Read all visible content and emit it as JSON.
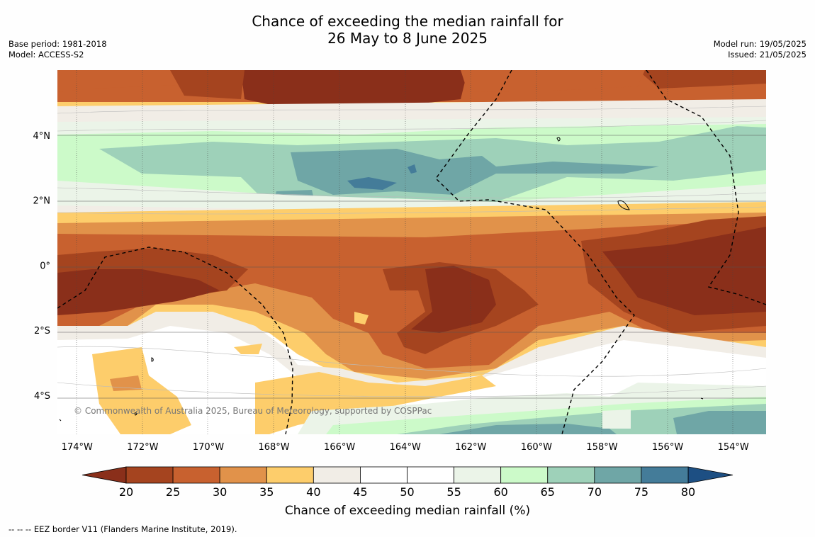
{
  "title_line1": "Chance of exceeding the median rainfall for",
  "title_line2": "26 May to 8 June 2025",
  "base_period": "Base period: 1981-2018",
  "model": "Model: ACCESS-S2",
  "model_run": "Model run: 19/05/2025",
  "issued": "Issued: 21/05/2025",
  "copyright": "© Commonwealth of Australia 2025, Bureau of Meteorology, supported by COSPPac",
  "footnote": "--  --  -- EEZ border V11 (Flanders Marine Institute, 2019).",
  "colorbar_title": "Chance of exceeding median rainfall (%)",
  "colorbar": {
    "levels": [
      20,
      25,
      30,
      35,
      40,
      45,
      50,
      55,
      60,
      65,
      70,
      75,
      80
    ],
    "labels": [
      "20",
      "25",
      "30",
      "35",
      "40",
      "45",
      "50",
      "55",
      "60",
      "65",
      "70",
      "75",
      "80"
    ],
    "colors": [
      "#a5441f",
      "#c8612f",
      "#e1924a",
      "#fdcd6b",
      "#f1ede6",
      "#ffffff",
      "#ffffff",
      "#ebf4e8",
      "#ccfac9",
      "#9ed1b9",
      "#6fa6a6",
      "#447c99"
    ],
    "under_color": "#8a2f1a",
    "over_color": "#1d4f83"
  },
  "map": {
    "lon_labels": [
      "174°W",
      "172°W",
      "170°W",
      "168°W",
      "166°W",
      "164°W",
      "162°W",
      "160°W",
      "158°W",
      "156°W",
      "154°W"
    ],
    "lon_values": [
      -174,
      -172,
      -170,
      -168,
      -166,
      -164,
      -162,
      -160,
      -158,
      -156,
      -154
    ],
    "lat_labels": [
      "4°N",
      "2°N",
      "0°",
      "2°S",
      "4°S"
    ],
    "lat_values": [
      4,
      2,
      0,
      -2,
      -4
    ],
    "lon_range": [
      -174.6,
      -153.0
    ],
    "lat_range": [
      -5.2,
      6.0
    ]
  }
}
